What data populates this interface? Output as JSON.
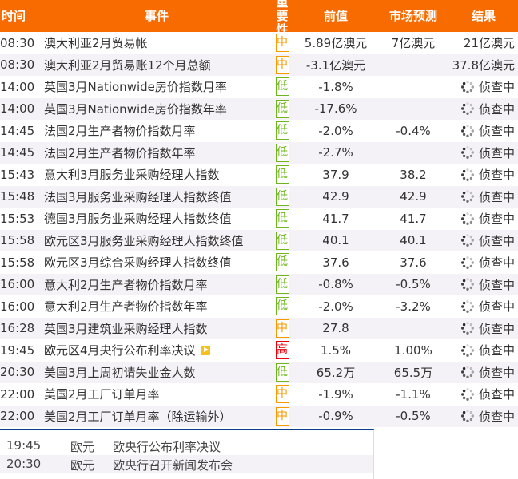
{
  "header": {
    "time": "时间",
    "event": "事件",
    "importance": "重要性",
    "previous": "前值",
    "forecast": "市场预测",
    "result": "结果"
  },
  "colors": {
    "header_bg": "#f76b00",
    "high": "#e8000b",
    "medium": "#f79a00",
    "low": "#6fb51d",
    "divider": "#0b3d8c"
  },
  "rows": [
    {
      "time": "08:30",
      "event": "澳大利亚2月贸易帐",
      "importance": "中",
      "level": "medium",
      "previous": "5.89亿澳元",
      "forecast": "7亿澳元",
      "result": "21亿澳元"
    },
    {
      "time": "08:30",
      "event": "澳大利亚2月贸易账12个月总额",
      "importance": "中",
      "level": "medium",
      "previous": "-3.1亿澳元",
      "forecast": "",
      "result": "37.8亿澳元"
    },
    {
      "time": "14:00",
      "event": "英国3月Nationwide房价指数月率",
      "importance": "低",
      "level": "low",
      "previous": "-1.8%",
      "forecast": "",
      "result": "侦查中",
      "pending": true
    },
    {
      "time": "14:00",
      "event": "英国3月Nationwide房价指数年率",
      "importance": "低",
      "level": "low",
      "previous": "-17.6%",
      "forecast": "",
      "result": "侦查中",
      "pending": true
    },
    {
      "time": "14:45",
      "event": "法国2月生产者物价指数月率",
      "importance": "低",
      "level": "low",
      "previous": "-2.0%",
      "forecast": "-0.4%",
      "result": "侦查中",
      "pending": true
    },
    {
      "time": "14:45",
      "event": "法国2月生产者物价指数年率",
      "importance": "低",
      "level": "low",
      "previous": "-2.7%",
      "forecast": "",
      "result": "侦查中",
      "pending": true
    },
    {
      "time": "15:43",
      "event": "意大利3月服务业采购经理人指数",
      "importance": "低",
      "level": "low",
      "previous": "37.9",
      "forecast": "38.2",
      "result": "侦查中",
      "pending": true
    },
    {
      "time": "15:48",
      "event": "法国3月服务业采购经理人指数终值",
      "importance": "低",
      "level": "low",
      "previous": "42.9",
      "forecast": "42.9",
      "result": "侦查中",
      "pending": true
    },
    {
      "time": "15:53",
      "event": "德国3月服务业采购经理人指数终值",
      "importance": "低",
      "level": "low",
      "previous": "41.7",
      "forecast": "41.7",
      "result": "侦查中",
      "pending": true
    },
    {
      "time": "15:58",
      "event": "欧元区3月服务业采购经理人指数终值",
      "importance": "低",
      "level": "low",
      "previous": "40.1",
      "forecast": "40.1",
      "result": "侦查中",
      "pending": true
    },
    {
      "time": "15:58",
      "event": "欧元区3月综合采购经理人指数终值",
      "importance": "低",
      "level": "low",
      "previous": "37.6",
      "forecast": "37.6",
      "result": "侦查中",
      "pending": true
    },
    {
      "time": "16:00",
      "event": "意大利2月生产者物价指数月率",
      "importance": "低",
      "level": "low",
      "previous": "-0.8%",
      "forecast": "-0.5%",
      "result": "侦查中",
      "pending": true
    },
    {
      "time": "16:00",
      "event": "意大利2月生产者物价指数年率",
      "importance": "低",
      "level": "low",
      "previous": "-2.0%",
      "forecast": "-3.2%",
      "result": "侦查中",
      "pending": true
    },
    {
      "time": "16:28",
      "event": "英国3月建筑业采购经理人指数",
      "importance": "中",
      "level": "medium",
      "previous": "27.8",
      "forecast": "",
      "result": "侦查中",
      "pending": true
    },
    {
      "time": "19:45",
      "event": "欧元区4月央行公布利率决议",
      "importance": "高",
      "level": "high",
      "previous": "1.5%",
      "forecast": "1.00%",
      "result": "侦查中",
      "pending": true,
      "video": true
    },
    {
      "time": "20:30",
      "event": "美国3月上周初请失业金人数",
      "importance": "低",
      "level": "low",
      "previous": "65.2万",
      "forecast": "65.5万",
      "result": "侦查中",
      "pending": true
    },
    {
      "time": "22:00",
      "event": "美国2月工厂订单月率",
      "importance": "中",
      "level": "medium",
      "previous": "-1.9%",
      "forecast": "-1.1%",
      "result": "侦查中",
      "pending": true
    },
    {
      "time": "22:00",
      "event": "美国2月工厂订单月率（除运输外）",
      "importance": "中",
      "level": "medium",
      "previous": "-0.9%",
      "forecast": "-0.5%",
      "result": "侦查中",
      "pending": true
    }
  ],
  "events": [
    {
      "time": "19:45",
      "currency": "欧元",
      "event": "欧央行公布利率决议"
    },
    {
      "time": "20:30",
      "currency": "欧元",
      "event": "欧央行召开新闻发布会"
    }
  ]
}
